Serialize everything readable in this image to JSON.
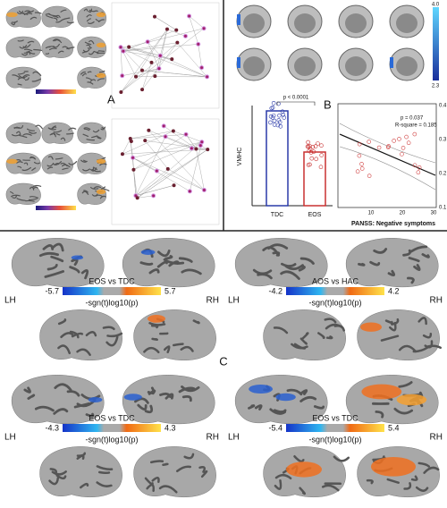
{
  "panel_a": {
    "label": "A"
  },
  "panel_b": {
    "label": "B",
    "colorbar_max": "4.0",
    "colorbar_min": "2.3",
    "bar_ylabel": "VMHC",
    "bar_categories": [
      "TDC",
      "EOS"
    ],
    "bar_p": "p < 0.0001",
    "scatter_xlabel": "PANSS: Negative symptoms",
    "scatter_p": "p = 0.037",
    "scatter_r2": "R-square = 0.185",
    "scatter_yticks": [
      "0.4",
      "0.3",
      "0.2",
      "0.1"
    ],
    "scatter_xticks": [
      "10",
      "20",
      "30"
    ]
  },
  "panel_c": {
    "label": "C",
    "hemi_left": "LH",
    "hemi_right": "RH",
    "colorbar_title": "-sgn(t)log10(p)",
    "maps": [
      {
        "contrast": "EOS vs TDC",
        "min": "-5.7",
        "max": "5.7"
      },
      {
        "contrast": "AOS vs HAC",
        "min": "-4.2",
        "max": "4.2"
      },
      {
        "contrast": "EOS vs TDC",
        "min": "-4.3",
        "max": "4.3"
      },
      {
        "contrast": "EOS vs TDC",
        "min": "-5.4",
        "max": "5.4"
      }
    ]
  }
}
